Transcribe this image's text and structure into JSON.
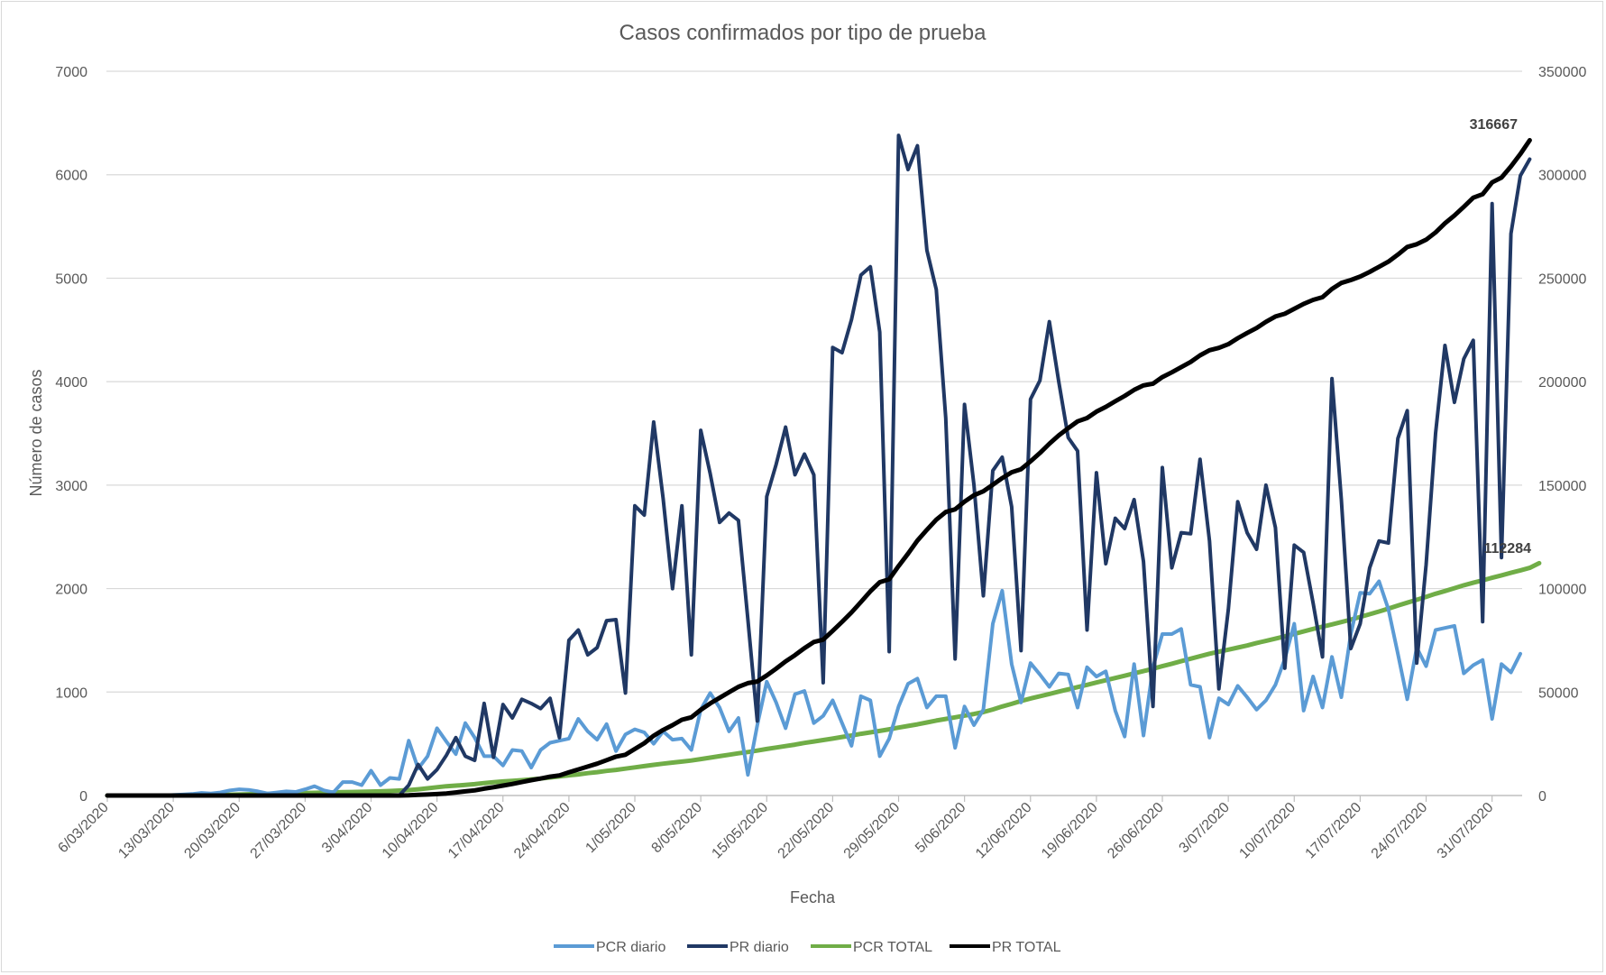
{
  "chart_data": {
    "type": "line",
    "title": "Casos confirmados por tipo de prueba",
    "xlabel": "Fecha",
    "ylabel": "Número de casos",
    "ylim": [
      0,
      7000
    ],
    "y2lim": [
      0,
      350000
    ],
    "yticks": [
      "0",
      "1000",
      "2000",
      "3000",
      "4000",
      "5000",
      "6000",
      "7000"
    ],
    "y2ticks": [
      "0",
      "50000",
      "100000",
      "150000",
      "200000",
      "250000",
      "300000",
      "350000"
    ],
    "xticks": [
      "6/03/2020",
      "13/03/2020",
      "20/03/2020",
      "27/03/2020",
      "3/04/2020",
      "10/04/2020",
      "17/04/2020",
      "24/04/2020",
      "1/05/2020",
      "8/05/2020",
      "15/05/2020",
      "22/05/2020",
      "29/05/2020",
      "5/06/2020",
      "12/06/2020",
      "19/06/2020",
      "26/06/2020",
      "3/07/2020",
      "10/07/2020",
      "17/07/2020",
      "24/07/2020",
      "31/07/2020"
    ],
    "x_start": "6/03/2020",
    "x_end": "31/07/2020",
    "grid": true,
    "legend_position": "bottom",
    "series": [
      {
        "name": "PCR diario",
        "axis": "left",
        "color": "#5b9bd5",
        "values": [
          0,
          0,
          0,
          0,
          0,
          0,
          0,
          5,
          10,
          15,
          25,
          20,
          30,
          50,
          60,
          55,
          40,
          20,
          30,
          40,
          35,
          60,
          90,
          50,
          30,
          130,
          130,
          100,
          240,
          100,
          170,
          160,
          530,
          260,
          380,
          650,
          520,
          400,
          700,
          560,
          380,
          380,
          290,
          440,
          430,
          270,
          440,
          510,
          530,
          550,
          740,
          620,
          540,
          690,
          430,
          590,
          640,
          610,
          500,
          620,
          540,
          550,
          440,
          830,
          990,
          850,
          620,
          750,
          200,
          680,
          1100,
          900,
          650,
          980,
          1010,
          700,
          770,
          920,
          700,
          480,
          960,
          920,
          380,
          550,
          860,
          1080,
          1130,
          850,
          960,
          960,
          460,
          860,
          680,
          830,
          1660,
          1980,
          1270,
          900,
          1280,
          1170,
          1050,
          1180,
          1170,
          850,
          1240,
          1150,
          1200,
          820,
          570,
          1270,
          580,
          1240,
          1560,
          1560,
          1610,
          1070,
          1050,
          560,
          940,
          880,
          1060,
          950,
          830,
          920,
          1070,
          1320,
          1660,
          820,
          1150,
          850,
          1340,
          950,
          1560,
          1960,
          1950,
          2070,
          1800,
          1370,
          930,
          1430,
          1250,
          1600,
          1620,
          1640,
          1180,
          1260,
          1310,
          740,
          1270,
          1190,
          1370
        ]
      },
      {
        "name": "PR diario",
        "axis": "left",
        "color": "#203864",
        "values": [
          0,
          0,
          0,
          0,
          0,
          0,
          0,
          0,
          0,
          0,
          0,
          0,
          0,
          0,
          0,
          0,
          0,
          0,
          0,
          0,
          0,
          0,
          0,
          0,
          0,
          0,
          0,
          0,
          0,
          0,
          0,
          0,
          100,
          300,
          160,
          250,
          390,
          560,
          380,
          340,
          890,
          370,
          880,
          750,
          930,
          890,
          840,
          940,
          560,
          1500,
          1600,
          1360,
          1430,
          1690,
          1700,
          990,
          2800,
          2710,
          3610,
          2870,
          2000,
          2800,
          1360,
          3530,
          3110,
          2640,
          2730,
          2660,
          1700,
          720,
          2890,
          3200,
          3560,
          3100,
          3300,
          3100,
          1090,
          4330,
          4280,
          4600,
          5030,
          5110,
          4480,
          1390,
          6380,
          6050,
          6280,
          5270,
          4890,
          3650,
          1320,
          3780,
          3000,
          1930,
          3140,
          3270,
          2790,
          1400,
          3830,
          4010,
          4580,
          4000,
          3460,
          3330,
          1600,
          3120,
          2240,
          2680,
          2580,
          2860,
          2260,
          860,
          3170,
          2200,
          2540,
          2530,
          3250,
          2460,
          1030,
          1800,
          2840,
          2540,
          2380,
          3000,
          2590,
          1230,
          2420,
          2350,
          1860,
          1340,
          4030,
          2860,
          1420,
          1660,
          2200,
          2460,
          2440,
          3450,
          3720,
          1280,
          2230,
          3500,
          4350,
          3800,
          4220,
          4400,
          1680,
          5720,
          2300,
          5430,
          5990,
          6150
        ]
      },
      {
        "name": "PCR TOTAL",
        "axis": "right",
        "color": "#70ad47",
        "values": [
          0,
          0,
          0,
          0,
          0,
          0,
          0,
          0,
          0,
          0,
          100,
          200,
          300,
          400,
          500,
          600,
          700,
          800,
          900,
          1000,
          1100,
          1200,
          1300,
          1400,
          1500,
          1600,
          1700,
          1800,
          1900,
          2000,
          2200,
          2400,
          2600,
          3000,
          3500,
          4000,
          4500,
          4800,
          5100,
          5500,
          6000,
          6400,
          6800,
          7100,
          7400,
          7800,
          8200,
          8700,
          9200,
          9700,
          10200,
          10800,
          11300,
          11900,
          12400,
          13000,
          13600,
          14200,
          14800,
          15400,
          15900,
          16400,
          16900,
          17600,
          18300,
          19000,
          19700,
          20400,
          21000,
          21700,
          22500,
          23200,
          23900,
          24600,
          25400,
          26100,
          26800,
          27500,
          28300,
          29000,
          29800,
          30500,
          31200,
          32000,
          32800,
          33600,
          34400,
          35300,
          36200,
          37000,
          37800,
          38600,
          39400,
          40300,
          41600,
          43000,
          44300,
          45700,
          46900,
          48000,
          49100,
          50200,
          51300,
          52400,
          53500,
          54600,
          55700,
          56800,
          57900,
          59000,
          60100,
          61300,
          62500,
          63700,
          64900,
          66100,
          67300,
          68500,
          69500,
          70500,
          71500,
          72500,
          73700,
          74700,
          75800,
          76900,
          78100,
          79300,
          80500,
          81600,
          82700,
          83800,
          85000,
          86300,
          87600,
          88900,
          90300,
          91800,
          93200,
          94600,
          96000,
          97500,
          98800,
          100200,
          101600,
          102800,
          104000,
          105200,
          106400,
          107600,
          108800,
          110000,
          112284
        ]
      },
      {
        "name": "PR TOTAL",
        "axis": "right",
        "color": "#000000",
        "values": [
          0,
          0,
          0,
          0,
          0,
          0,
          0,
          0,
          0,
          0,
          0,
          0,
          0,
          0,
          0,
          0,
          0,
          0,
          0,
          0,
          0,
          0,
          0,
          0,
          0,
          0,
          0,
          0,
          0,
          0,
          0,
          0,
          100,
          300,
          500,
          700,
          1000,
          1500,
          2000,
          2500,
          3300,
          4000,
          4800,
          5600,
          6500,
          7400,
          8200,
          9100,
          9700,
          11200,
          12600,
          14000,
          15400,
          17100,
          18800,
          19700,
          22500,
          25300,
          28900,
          31700,
          34000,
          36600,
          37800,
          41400,
          44500,
          47200,
          49900,
          52500,
          54300,
          55100,
          58000,
          61300,
          64800,
          67800,
          71200,
          74200,
          75300,
          79600,
          83900,
          88500,
          93500,
          98700,
          103100,
          104500,
          110900,
          116900,
          123200,
          128400,
          133300,
          137000,
          138300,
          142000,
          145100,
          147000,
          150200,
          153400,
          156200,
          157700,
          161500,
          165500,
          170000,
          174000,
          177500,
          180800,
          182400,
          185500,
          187800,
          190500,
          193100,
          196000,
          198200,
          199000,
          202200,
          204500,
          207000,
          209500,
          212700,
          215200,
          216300,
          218100,
          221000,
          223500,
          225900,
          228900,
          231500,
          232800,
          235200,
          237600,
          239500,
          240800,
          244800,
          247700,
          249100,
          250800,
          253000,
          255500,
          258000,
          261400,
          265100,
          266400,
          268600,
          272100,
          276500,
          280300,
          284500,
          288900,
          290600,
          296300,
          298600,
          304000,
          310000,
          316667
        ]
      }
    ],
    "annotations": [
      "316667",
      "112284"
    ]
  }
}
